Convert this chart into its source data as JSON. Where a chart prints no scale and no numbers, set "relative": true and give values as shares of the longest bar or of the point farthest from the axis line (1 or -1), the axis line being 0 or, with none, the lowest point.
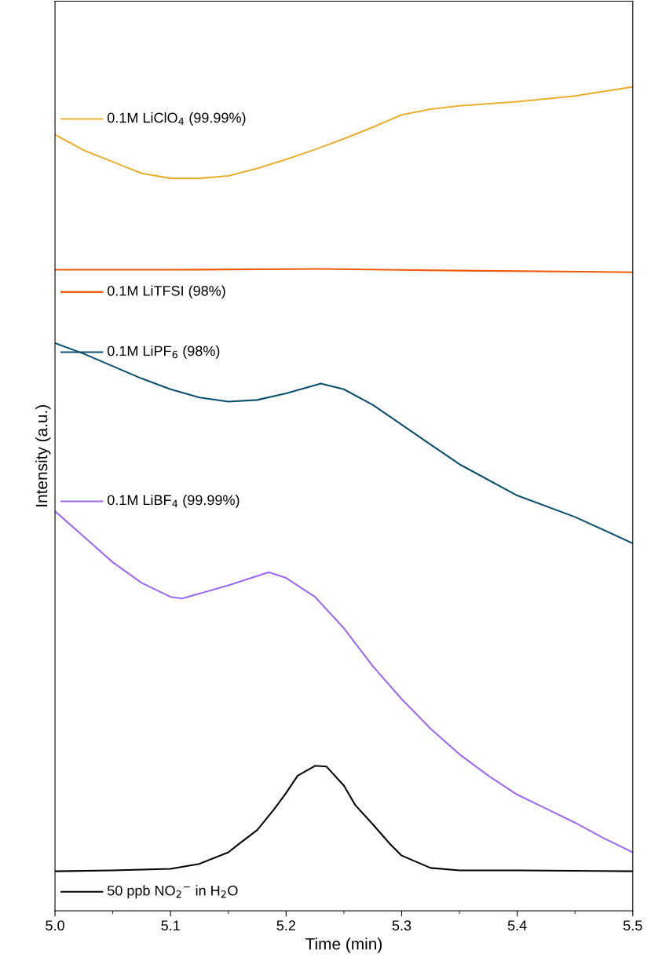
{
  "chart_data": {
    "type": "line",
    "relative": true,
    "xlabel": "Time (min)",
    "ylabel": "Intensity (a.u.)",
    "tick_labels": "x",
    "legend": "left",
    "grid": false,
    "marker": "none",
    "line_style": "solid",
    "xlim": [
      5.0,
      5.5
    ],
    "xticks": [
      {
        "value": 5.0,
        "label": "5.0"
      },
      {
        "value": 5.1,
        "label": "5.1"
      },
      {
        "value": 5.2,
        "label": "5.2"
      },
      {
        "value": 5.3,
        "label": "5.3"
      },
      {
        "value": 5.4,
        "label": "5.4"
      },
      {
        "value": 5.5,
        "label": "5.5"
      }
    ],
    "series": [
      {
        "name": "0.1M LiClO$_{4}$ (99.99%)",
        "color": "#e8b030",
        "x": [
          5.0,
          5.025,
          5.05,
          5.075,
          5.1,
          5.125,
          5.15,
          5.175,
          5.2,
          5.225,
          5.25,
          5.275,
          5.3,
          5.325,
          5.35,
          5.4,
          5.45,
          5.5
        ],
        "values": [
          0.942,
          0.923,
          0.909,
          0.895,
          0.889,
          0.889,
          0.892,
          0.901,
          0.912,
          0.924,
          0.937,
          0.951,
          0.966,
          0.973,
          0.977,
          0.982,
          0.989,
          1.0
        ]
      },
      {
        "name": "0.1M LiTFSI (98%)",
        "color": "#f05a0a",
        "x": [
          5.0,
          5.1,
          5.23,
          5.35,
          5.5
        ],
        "values": [
          0.778,
          0.778,
          0.779,
          0.777,
          0.775
        ]
      },
      {
        "name": "0.1M LiPF$_{6}$ (98%)",
        "color": "#0b4f6c",
        "x": [
          5.0,
          5.025,
          5.05,
          5.075,
          5.1,
          5.125,
          5.15,
          5.175,
          5.2,
          5.23,
          5.25,
          5.275,
          5.3,
          5.325,
          5.35,
          5.4,
          5.45,
          5.5
        ],
        "values": [
          0.689,
          0.676,
          0.661,
          0.646,
          0.633,
          0.623,
          0.618,
          0.62,
          0.628,
          0.64,
          0.633,
          0.614,
          0.59,
          0.566,
          0.542,
          0.504,
          0.478,
          0.446
        ]
      },
      {
        "name": "0.1M LiBF$_{4}$ (99.99%)",
        "color": "#9b6af5",
        "x": [
          5.0,
          5.025,
          5.05,
          5.075,
          5.1,
          5.11,
          5.15,
          5.185,
          5.2,
          5.225,
          5.25,
          5.275,
          5.3,
          5.325,
          5.35,
          5.375,
          5.4,
          5.425,
          5.45,
          5.475,
          5.5
        ],
        "values": [
          0.485,
          0.454,
          0.423,
          0.398,
          0.381,
          0.379,
          0.395,
          0.411,
          0.404,
          0.381,
          0.343,
          0.297,
          0.257,
          0.221,
          0.19,
          0.164,
          0.141,
          0.124,
          0.107,
          0.088,
          0.071
        ]
      },
      {
        "name": "50 ppb NO$_{2}$$^{−}$ in H$_{2}$O",
        "color": "#000000",
        "x": [
          5.0,
          5.05,
          5.1,
          5.125,
          5.15,
          5.16,
          5.175,
          5.19,
          5.2,
          5.21,
          5.225,
          5.235,
          5.25,
          5.26,
          5.275,
          5.29,
          5.3,
          5.325,
          5.35,
          5.4,
          5.5
        ],
        "values": [
          0.048,
          0.049,
          0.051,
          0.057,
          0.071,
          0.082,
          0.098,
          0.124,
          0.143,
          0.164,
          0.176,
          0.175,
          0.152,
          0.128,
          0.105,
          0.081,
          0.067,
          0.052,
          0.049,
          0.049,
          0.048
        ]
      }
    ]
  }
}
